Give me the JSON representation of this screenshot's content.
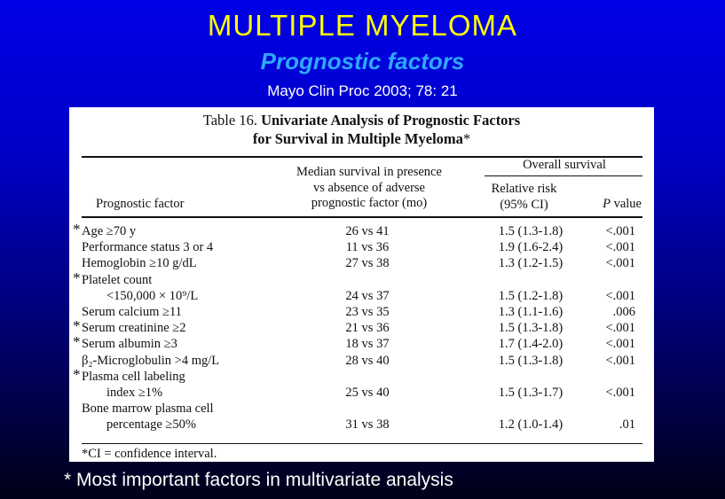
{
  "slide": {
    "title": "MULTIPLE MYELOMA",
    "subtitle": "Prognostic factors",
    "citation": "Mayo Clin Proc 2003; 78: 21",
    "bottom_note": "* Most important factors in multivariate analysis",
    "colors": {
      "title": "#ffff00",
      "subtitle": "#2ea8ff",
      "background_top": "#0000e6",
      "background_bottom": "#000018"
    }
  },
  "table": {
    "title_prefix": "Table 16.",
    "title_bold_1": "Univariate Analysis of Prognostic Factors",
    "title_bold_2": "for Survival in Multiple Myeloma",
    "title_suffix": "*",
    "headers": {
      "group": "Overall survival",
      "factor": "Prognostic factor",
      "median_1": "Median survival in presence",
      "median_2": "vs absence of adverse",
      "median_3": "prognostic factor (mo)",
      "rr_1": "Relative risk",
      "rr_2": "(95% CI)",
      "p_italic": "P",
      "p_rest": " value"
    },
    "rows": [
      {
        "line1": "Age ≥70 y",
        "line2": "",
        "median": "26 vs 41",
        "rr": "1.5 (1.3-1.8)",
        "p": "<.001",
        "starred": true
      },
      {
        "line1": "Performance status 3 or 4",
        "line2": "",
        "median": "11 vs 36",
        "rr": "1.9 (1.6-2.4)",
        "p": "<.001",
        "starred": false
      },
      {
        "line1": "Hemoglobin ≥10 g/dL",
        "line2": "",
        "median": "27 vs 38",
        "rr": "1.3 (1.2-1.5)",
        "p": "<.001",
        "starred": false
      },
      {
        "line1": "Platelet count",
        "line2": "<150,000 × 10⁹/L",
        "median": "24 vs 37",
        "rr": "1.5 (1.2-1.8)",
        "p": "<.001",
        "starred": true
      },
      {
        "line1": "Serum calcium ≥11",
        "line2": "",
        "median": "23 vs 35",
        "rr": "1.3 (1.1-1.6)",
        "p": ".006",
        "starred": false
      },
      {
        "line1": "Serum creatinine ≥2",
        "line2": "",
        "median": "21 vs 36",
        "rr": "1.5 (1.3-1.8)",
        "p": "<.001",
        "starred": true
      },
      {
        "line1": "Serum albumin ≥3",
        "line2": "",
        "median": "18 vs 37",
        "rr": "1.7 (1.4-2.0)",
        "p": "<.001",
        "starred": true
      },
      {
        "line1": "β₂-Microglobulin >4 mg/L",
        "line2": "",
        "median": "28 vs 40",
        "rr": "1.5 (1.3-1.8)",
        "p": "<.001",
        "starred": false
      },
      {
        "line1": "Plasma cell labeling",
        "line2": "index ≥1%",
        "median": "25 vs 40",
        "rr": "1.5 (1.3-1.7)",
        "p": "<.001",
        "starred": true
      },
      {
        "line1": "Bone marrow plasma cell",
        "line2": "percentage ≥50%",
        "median": "31 vs 38",
        "rr": "1.2 (1.0-1.4)",
        "p": ".01",
        "starred": false
      }
    ],
    "star_symbol": "*",
    "footnote": "*CI = confidence interval."
  }
}
